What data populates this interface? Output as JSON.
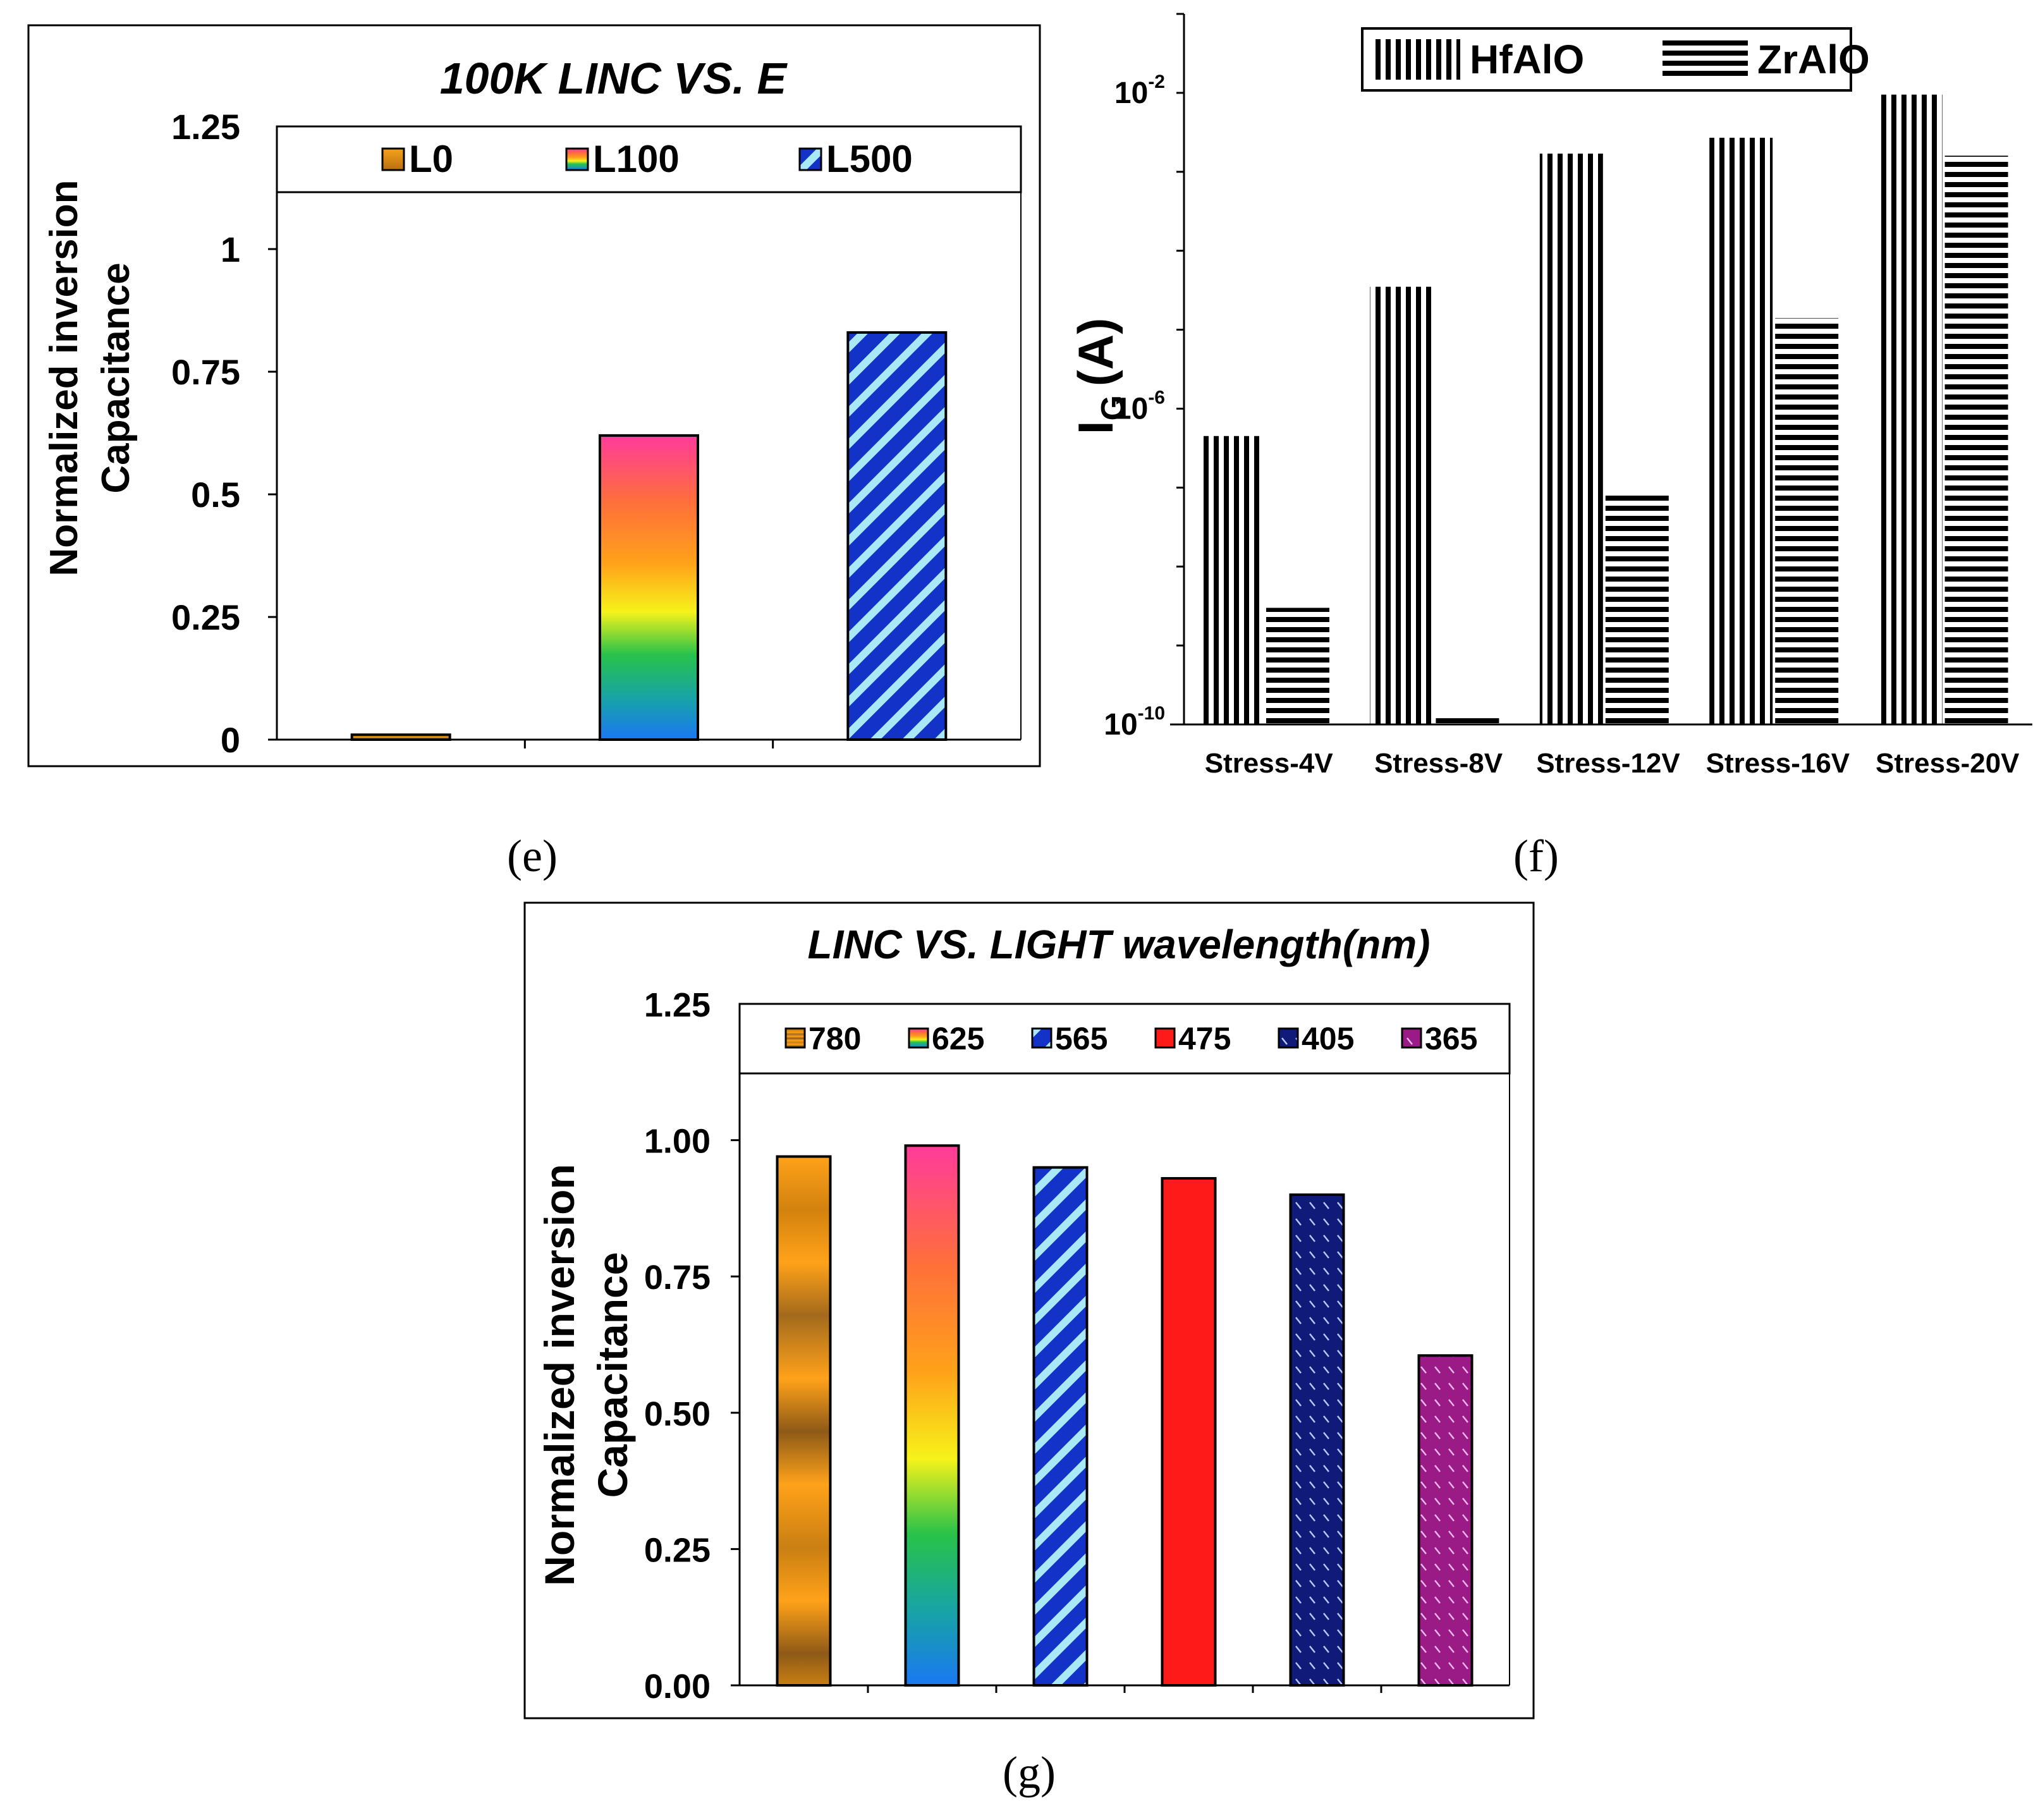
{
  "chart_data": [
    {
      "panel": "e",
      "type": "bar",
      "title": "100K LINC  VS.  E",
      "ylabel": [
        "Normalized inversion",
        "Capacitance"
      ],
      "xlabel": "",
      "ylim": [
        0,
        1.25
      ],
      "yticks": [
        "0",
        "0.25",
        "0.5",
        "0.75",
        "1",
        "1.25"
      ],
      "categories": [
        "L0",
        "L100",
        "L500"
      ],
      "values": [
        0.01,
        0.62,
        0.83
      ],
      "legend_position": "top",
      "caption": "(e)"
    },
    {
      "panel": "f",
      "type": "bar",
      "scale": "log",
      "ylabel": "I_G (A)",
      "ylabel_main": "I",
      "ylabel_sub": "G",
      "ylabel_unit": "(A)",
      "ylim": [
        1e-10,
        0.1
      ],
      "yticks": [
        {
          "base": "10",
          "exp": "-10",
          "value": 1e-10
        },
        {
          "base": "10",
          "exp": "-6",
          "value": 1e-06
        },
        {
          "base": "10",
          "exp": "-2",
          "value": 0.01
        }
      ],
      "categories": [
        "Stress-4V",
        "Stress-8V",
        "Stress-12V",
        "Stress-16V",
        "Stress-20V"
      ],
      "series": [
        {
          "name": "HfAlO",
          "label": "HfAlO",
          "values": [
            4.5e-07,
            3.5e-05,
            0.0017,
            0.0027,
            0.0095
          ]
        },
        {
          "name": "ZrAlO",
          "label": "ZrAlO",
          "values": [
            3e-09,
            1.2e-10,
            8.5e-08,
            1.4e-05,
            0.0016
          ]
        }
      ],
      "legend_position": "top",
      "caption": "(f)"
    },
    {
      "panel": "g",
      "type": "bar",
      "title": "LINC  VS. LIGHT wavelength(nm)",
      "ylabel": [
        "Normalized inversion",
        "Capacitance"
      ],
      "ylim": [
        0,
        1.25
      ],
      "yticks": [
        "0.00",
        "0.25",
        "0.50",
        "0.75",
        "1.00",
        "1.25"
      ],
      "categories": [
        "780",
        "625",
        "565",
        "475",
        "405",
        "365"
      ],
      "values": [
        0.97,
        0.99,
        0.95,
        0.93,
        0.9,
        0.605
      ],
      "legend_position": "top",
      "caption": "(g)"
    }
  ]
}
